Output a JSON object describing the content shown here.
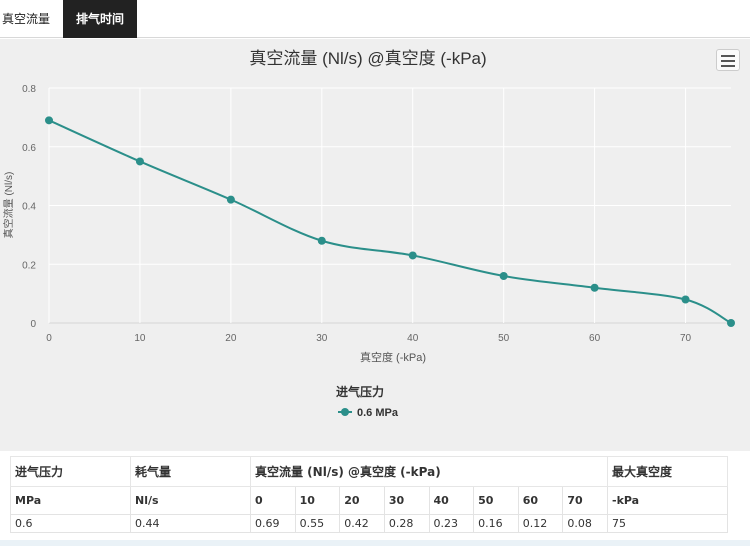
{
  "tabs": [
    {
      "label": "真空流量"
    },
    {
      "label": "排气时间"
    }
  ],
  "chart_data": {
    "type": "line",
    "title": "真空流量 (Nl/s) @真空度 (-kPa)",
    "xlabel": "真空度 (-kPa)",
    "ylabel": "真空流量 (Nl/s)",
    "xlim": [
      0,
      75
    ],
    "ylim": [
      0,
      0.8
    ],
    "x_ticks": [
      "0",
      "10",
      "20",
      "30",
      "40",
      "50",
      "60",
      "70"
    ],
    "y_ticks": [
      "0",
      "0.2",
      "0.4",
      "0.6",
      "0.8"
    ],
    "grid": true,
    "legend_title": "进气压力",
    "legend_position": "bottom-center",
    "series": [
      {
        "name": "0.6 MPa",
        "color": "#2b8f8a",
        "x": [
          0,
          10,
          20,
          30,
          40,
          50,
          60,
          70,
          75
        ],
        "y": [
          0.69,
          0.55,
          0.42,
          0.28,
          0.23,
          0.16,
          0.12,
          0.08,
          0
        ]
      }
    ]
  },
  "menu": {
    "icon": "hamburger-menu-icon"
  },
  "table": {
    "header": {
      "inlet_pressure": "进气压力",
      "air_consumption": "耗气量",
      "vacuum_flow": "真空流量 (Nl/s) @真空度 (-kPa)",
      "max_vacuum": "最大真空度"
    },
    "units": {
      "inlet_pressure": "MPa",
      "air_consumption": "Nl/s",
      "vacuum_levels": [
        "0",
        "10",
        "20",
        "30",
        "40",
        "50",
        "60",
        "70"
      ],
      "max_vacuum": "-kPa"
    },
    "row": {
      "inlet_pressure": "0.6",
      "air_consumption": "0.44",
      "flows": [
        "0.69",
        "0.55",
        "0.42",
        "0.28",
        "0.23",
        "0.16",
        "0.12",
        "0.08"
      ],
      "max_vacuum": "75"
    }
  }
}
